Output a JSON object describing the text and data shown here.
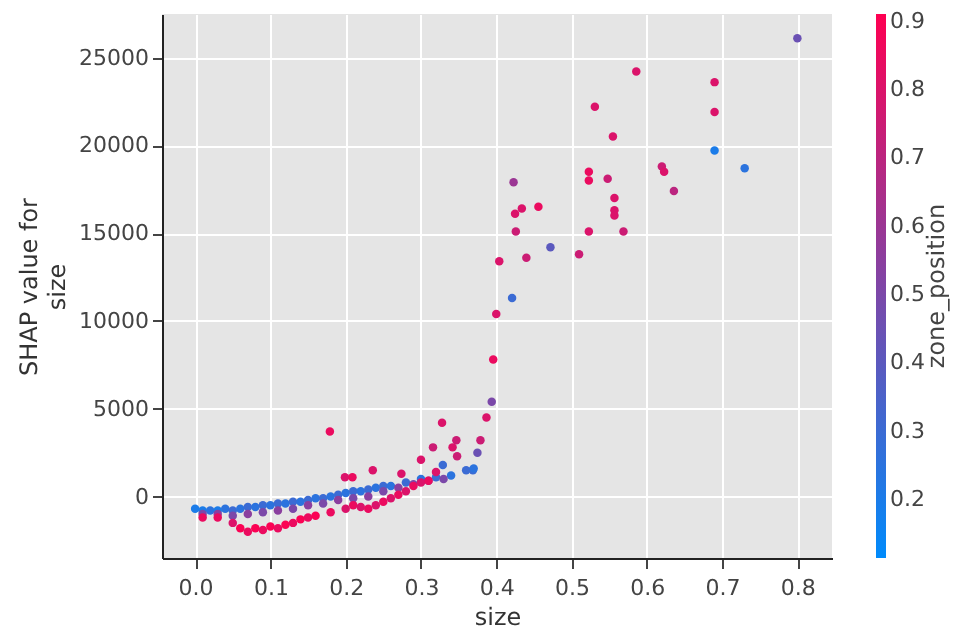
{
  "chart_data": {
    "type": "scatter",
    "xlabel": "size",
    "ylabel": "SHAP value for\nsize",
    "clabel": "zone_position",
    "xlim": [
      -0.044,
      0.846
    ],
    "xticks": [
      {
        "value": 0,
        "label": "0.0"
      },
      0.1,
      0.2,
      0.3,
      0.4,
      0.5,
      0.6,
      0.7,
      0.8
    ],
    "ylim": [
      -3500,
      27480
    ],
    "yticks": [
      0,
      5000,
      10000,
      15000,
      20000,
      25000
    ],
    "clim": [
      0.115,
      0.911
    ],
    "cticks": [
      0.2,
      0.3,
      0.4,
      0.5,
      0.6,
      0.7,
      0.8,
      0.9
    ],
    "grid": true,
    "marker": "circle",
    "x": [
      0.8,
      0.586,
      0.69,
      0.531,
      0.69,
      0.555,
      0.69,
      0.73,
      0.62,
      0.623,
      0.523,
      0.523,
      0.548,
      0.423,
      0.636,
      0.557,
      0.557,
      0.557,
      0.456,
      0.434,
      0.425,
      0.426,
      0.523,
      0.569,
      0.472,
      0.51,
      0.44,
      0.404,
      0.421,
      0.4,
      0.396,
      0.394,
      0.387,
      0.328,
      0.379,
      0.375,
      0.179,
      0.347,
      0.316,
      0.342,
      0.348,
      0.3,
      0.329,
      0.369,
      0.236,
      0.199,
      0.209,
      0.274,
      0.0,
      0.01,
      0.02,
      0.03,
      0.04,
      0.05,
      0.06,
      0.07,
      0.08,
      0.09,
      0.1,
      0.11,
      0.12,
      0.13,
      0.14,
      0.15,
      0.16,
      0.17,
      0.18,
      0.19,
      0.2,
      0.21,
      0.22,
      0.23,
      0.24,
      0.25,
      0.26,
      0.28,
      0.3,
      0.32,
      0.34,
      0.36,
      0.37,
      0.01,
      0.03,
      0.05,
      0.07,
      0.09,
      0.11,
      0.13,
      0.15,
      0.17,
      0.19,
      0.21,
      0.23,
      0.25,
      0.27,
      0.29,
      0.31,
      0.33,
      0.01,
      0.03,
      0.05,
      0.06,
      0.07,
      0.08,
      0.09,
      0.1,
      0.11,
      0.12,
      0.13,
      0.14,
      0.15,
      0.16,
      0.18,
      0.2,
      0.21,
      0.22,
      0.23,
      0.24,
      0.25,
      0.26,
      0.27,
      0.28,
      0.29,
      0.3,
      0.31,
      0.32
    ],
    "values": [
      26100,
      24200,
      23600,
      22200,
      21900,
      20500,
      19700,
      18700,
      18800,
      18500,
      18500,
      18000,
      18100,
      17900,
      17400,
      17000,
      16300,
      16000,
      16500,
      16400,
      16100,
      15100,
      15100,
      15100,
      14200,
      13800,
      13600,
      13400,
      11300,
      10400,
      7800,
      5400,
      4500,
      4200,
      3200,
      2500,
      3700,
      3200,
      2800,
      2800,
      2300,
      2100,
      1800,
      1500,
      1500,
      1100,
      1100,
      1300,
      -700,
      -800,
      -800,
      -800,
      -700,
      -800,
      -700,
      -600,
      -600,
      -500,
      -500,
      -400,
      -400,
      -300,
      -300,
      -200,
      -100,
      -100,
      0,
      100,
      200,
      300,
      300,
      400,
      500,
      600,
      600,
      800,
      1000,
      1100,
      1200,
      1500,
      1600,
      -1000,
      -1000,
      -1100,
      -1000,
      -900,
      -800,
      -700,
      -500,
      -400,
      -200,
      -100,
      0,
      300,
      500,
      700,
      900,
      1000,
      -1200,
      -1200,
      -1500,
      -1800,
      -2000,
      -1800,
      -1900,
      -1700,
      -1800,
      -1600,
      -1500,
      -1300,
      -1200,
      -1100,
      -900,
      -700,
      -500,
      -600,
      -700,
      -500,
      -300,
      -100,
      100,
      300,
      600,
      800,
      900,
      1400
    ],
    "cvalues": [
      0.45,
      0.8,
      0.8,
      0.8,
      0.8,
      0.8,
      0.2,
      0.25,
      0.75,
      0.8,
      0.85,
      0.85,
      0.75,
      0.6,
      0.7,
      0.8,
      0.8,
      0.8,
      0.85,
      0.8,
      0.8,
      0.75,
      0.8,
      0.75,
      0.4,
      0.75,
      0.75,
      0.8,
      0.3,
      0.8,
      0.85,
      0.5,
      0.8,
      0.8,
      0.75,
      0.45,
      0.85,
      0.75,
      0.75,
      0.8,
      0.75,
      0.8,
      0.3,
      0.3,
      0.8,
      0.8,
      0.85,
      0.8,
      0.2,
      0.2,
      0.25,
      0.2,
      0.25,
      0.3,
      0.25,
      0.3,
      0.25,
      0.3,
      0.25,
      0.3,
      0.25,
      0.3,
      0.25,
      0.3,
      0.25,
      0.3,
      0.25,
      0.3,
      0.25,
      0.3,
      0.25,
      0.3,
      0.25,
      0.3,
      0.25,
      0.3,
      0.25,
      0.3,
      0.25,
      0.3,
      0.25,
      0.5,
      0.55,
      0.5,
      0.55,
      0.5,
      0.55,
      0.5,
      0.55,
      0.5,
      0.55,
      0.5,
      0.55,
      0.5,
      0.55,
      0.5,
      0.55,
      0.5,
      0.85,
      0.85,
      0.8,
      0.9,
      0.85,
      0.9,
      0.85,
      0.9,
      0.85,
      0.9,
      0.85,
      0.9,
      0.85,
      0.9,
      0.85,
      0.8,
      0.85,
      0.8,
      0.85,
      0.8,
      0.85,
      0.8,
      0.85,
      0.8,
      0.85,
      0.8,
      0.85,
      0.8
    ]
  }
}
